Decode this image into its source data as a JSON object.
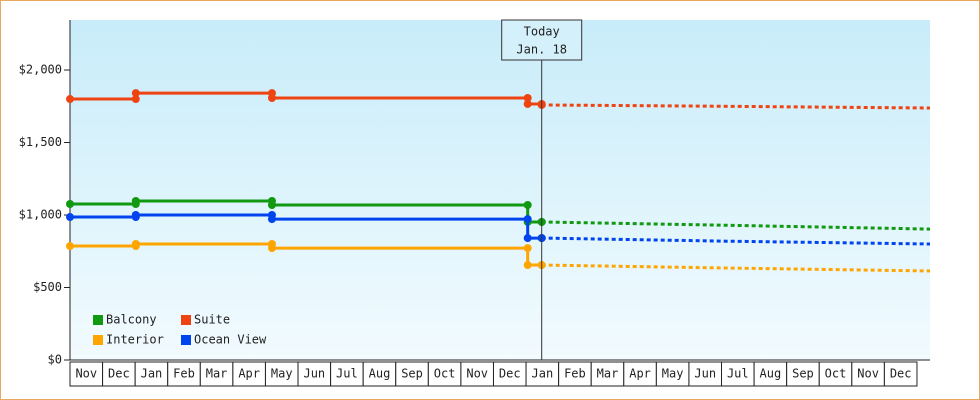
{
  "chart_data": {
    "type": "line",
    "step": true,
    "xlim": [
      0,
      26.4
    ],
    "ylim": [
      0,
      2345
    ],
    "yticks": [
      {
        "value": 0,
        "label": "$0"
      },
      {
        "value": 500,
        "label": "$500"
      },
      {
        "value": 1000,
        "label": "$1,000"
      },
      {
        "value": 1500,
        "label": "$1,500"
      },
      {
        "value": 2000,
        "label": "$2,000"
      }
    ],
    "xticks": [
      {
        "value": 0.5,
        "label": "Nov"
      },
      {
        "value": 1.5,
        "label": "Dec"
      },
      {
        "value": 2.5,
        "label": "Jan"
      },
      {
        "value": 3.5,
        "label": "Feb"
      },
      {
        "value": 4.5,
        "label": "Mar"
      },
      {
        "value": 5.5,
        "label": "Apr"
      },
      {
        "value": 6.5,
        "label": "May"
      },
      {
        "value": 7.5,
        "label": "Jun"
      },
      {
        "value": 8.5,
        "label": "Jul"
      },
      {
        "value": 9.5,
        "label": "Aug"
      },
      {
        "value": 10.5,
        "label": "Sep"
      },
      {
        "value": 11.5,
        "label": "Oct"
      },
      {
        "value": 12.5,
        "label": "Nov"
      },
      {
        "value": 13.5,
        "label": "Dec"
      },
      {
        "value": 14.5,
        "label": "Jan"
      },
      {
        "value": 15.5,
        "label": "Feb"
      },
      {
        "value": 16.5,
        "label": "Mar"
      },
      {
        "value": 17.5,
        "label": "Apr"
      },
      {
        "value": 18.5,
        "label": "May"
      },
      {
        "value": 19.5,
        "label": "Jun"
      },
      {
        "value": 20.5,
        "label": "Jul"
      },
      {
        "value": 21.5,
        "label": "Aug"
      },
      {
        "value": 22.5,
        "label": "Sep"
      },
      {
        "value": 23.5,
        "label": "Oct"
      },
      {
        "value": 24.5,
        "label": "Nov"
      },
      {
        "value": 25.5,
        "label": "Dec"
      }
    ],
    "annotation": {
      "x": 14.48,
      "lines": [
        "Today",
        "Jan. 18"
      ]
    },
    "legend": "lower left",
    "series": [
      {
        "name": "Balcony",
        "color": "#119911",
        "x": [
          0,
          2.02,
          6.2,
          14.05,
          14.48
        ],
        "values": [
          1076,
          1097,
          1069,
          952,
          952
        ],
        "forecast_x": [
          14.48,
          20,
          26.4
        ],
        "forecast_values": [
          952,
          930,
          903
        ]
      },
      {
        "name": "Suite",
        "color": "#ee4411",
        "x": [
          0,
          2.02,
          6.2,
          14.05,
          14.48
        ],
        "values": [
          1800,
          1841,
          1807,
          1766,
          1759
        ],
        "forecast_x": [
          14.48,
          20,
          26.4
        ],
        "forecast_values": [
          1759,
          1750,
          1738
        ]
      },
      {
        "name": "Interior",
        "color": "#ffa500",
        "x": [
          0,
          2.02,
          6.2,
          14.05,
          14.48
        ],
        "values": [
          786,
          800,
          772,
          655,
          655
        ],
        "forecast_x": [
          14.48,
          20,
          26.4
        ],
        "forecast_values": [
          655,
          635,
          614
        ]
      },
      {
        "name": "Ocean View",
        "color": "#0044ee",
        "x": [
          0,
          2.02,
          6.2,
          14.05,
          14.48
        ],
        "values": [
          986,
          1000,
          972,
          841,
          841
        ],
        "forecast_x": [
          14.48,
          20,
          26.4
        ],
        "forecast_values": [
          841,
          820,
          800
        ]
      }
    ]
  }
}
